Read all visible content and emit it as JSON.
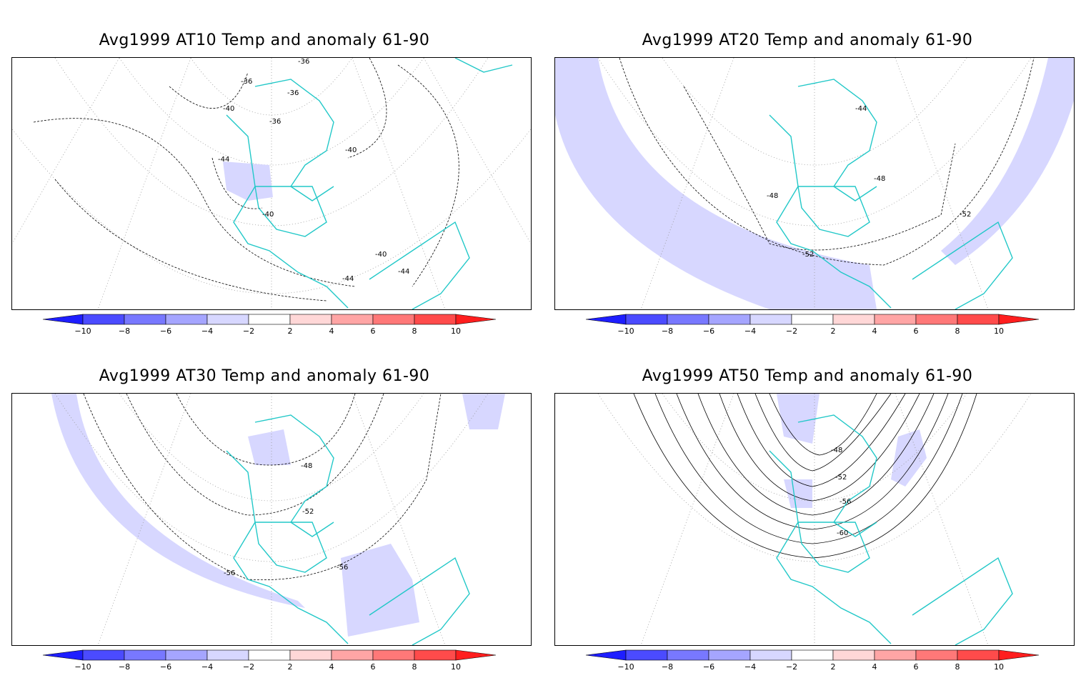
{
  "colorbar": {
    "colors": [
      "#1e1eff",
      "#4b4bff",
      "#7878ff",
      "#a5a5ff",
      "#d7d7ff",
      "#ffffff",
      "#ffd7d7",
      "#ffa5a5",
      "#ff7878",
      "#ff4b4b",
      "#ff1e1e"
    ],
    "labels": [
      "−10",
      "−8",
      "−6",
      "−4",
      "−2",
      "2",
      "4",
      "6",
      "8",
      "10"
    ]
  },
  "coast_color": "#22c8c8",
  "panels": [
    {
      "id": "at10",
      "title": "Avg1999 AT10 Temp and anomaly 61-90",
      "contour_labels": [
        "-36",
        "-36",
        "-36",
        "-40",
        "-36",
        "-44",
        "-40",
        "-40",
        "-40",
        "-44",
        "-44"
      ]
    },
    {
      "id": "at20",
      "title": "Avg1999 AT20 Temp and anomaly 61-90",
      "contour_labels": [
        "-44",
        "-48",
        "-48",
        "-52",
        "-52"
      ]
    },
    {
      "id": "at30",
      "title": "Avg1999 AT30 Temp and anomaly 61-90",
      "contour_labels": [
        "-48",
        "-52",
        "-56",
        "-56"
      ]
    },
    {
      "id": "at50",
      "title": "Avg1999 AT50 Temp and anomaly 61-90",
      "contour_labels": [
        "-48",
        "-52",
        "-56",
        "-60"
      ]
    }
  ]
}
